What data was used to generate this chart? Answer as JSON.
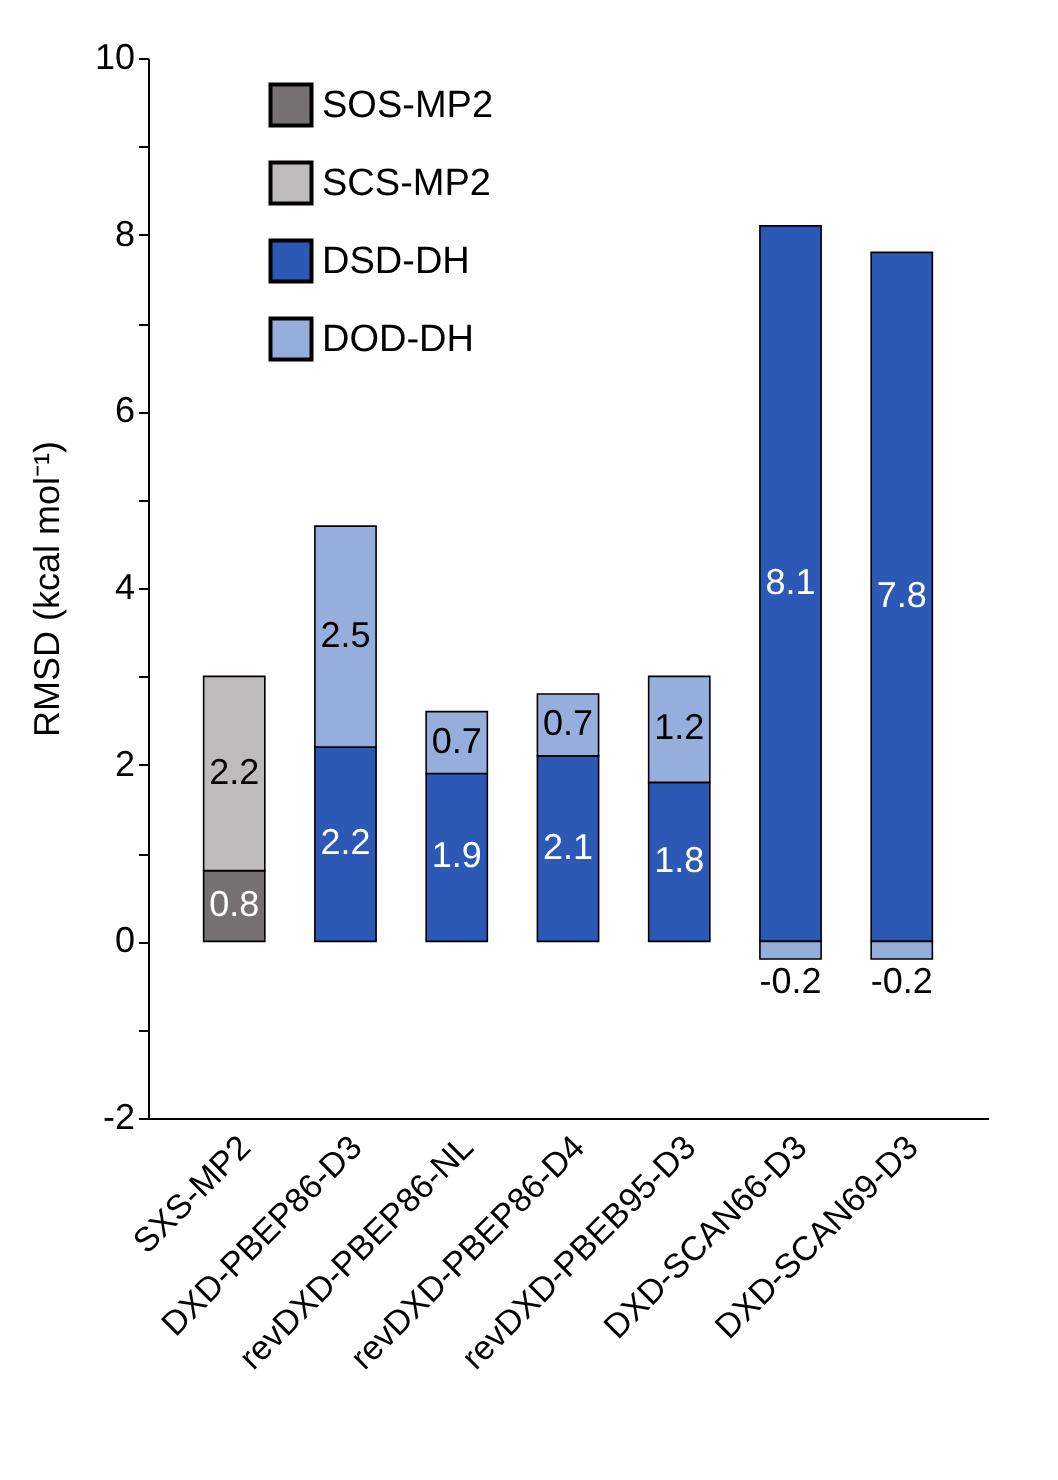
{
  "chart_data": {
    "type": "bar",
    "stacked": true,
    "ylabel": "RMSD (kcal mol⁻¹)",
    "categories": [
      "SXS-MP2",
      "DXD-PBEP86-D3",
      "revDXD-PBEP86-NL",
      "revDXD-PBEP86-D4",
      "revDXD-PBEB95-D3",
      "DXD-SCAN66-D3",
      "DXD-SCAN69-D3"
    ],
    "series": [
      {
        "name": "SOS-MP2",
        "color": "#767171",
        "values": [
          0.8,
          null,
          null,
          null,
          null,
          null,
          null
        ]
      },
      {
        "name": "SCS-MP2",
        "color": "#bdbbbb",
        "values": [
          2.2,
          null,
          null,
          null,
          null,
          null,
          null
        ]
      },
      {
        "name": "DSD-DH",
        "color": "#2b59b5",
        "values": [
          null,
          2.2,
          1.9,
          2.1,
          1.8,
          8.1,
          7.8
        ]
      },
      {
        "name": "DOD-DH",
        "color": "#96aedc",
        "values": [
          null,
          2.5,
          0.7,
          0.7,
          1.2,
          -0.2,
          -0.2
        ]
      }
    ],
    "ylim": [
      -2,
      10
    ],
    "yticks": [
      -2,
      {
        "value": -1,
        "label": null
      },
      0,
      {
        "value": 1,
        "label": null
      },
      2,
      {
        "value": 3,
        "label": null
      },
      4,
      {
        "value": 5,
        "label": null
      },
      6,
      {
        "value": 7,
        "label": null
      },
      8,
      {
        "value": 9,
        "label": null
      },
      10
    ],
    "data_labels": true,
    "legend": "top left",
    "grid": false
  }
}
